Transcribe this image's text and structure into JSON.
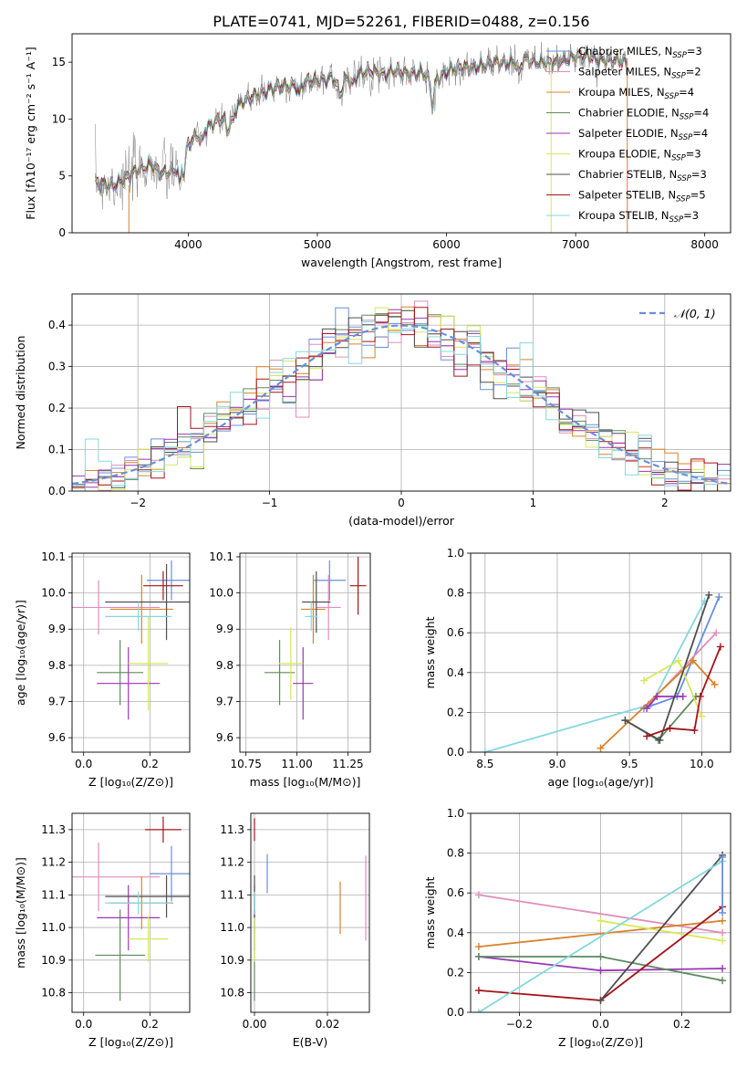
{
  "figure_title": "PLATE=0741, MJD=52261, FIBERID=0488, z=0.156",
  "colors": {
    "chabrier_miles": "#6a8fdc",
    "salpeter_miles": "#e18db9",
    "kroupa_miles": "#d9822b",
    "chabrier_elodie": "#5f8a5f",
    "salpeter_elodie": "#9a35b5",
    "kroupa_elodie": "#d7e85a",
    "chabrier_stelib": "#4f4f4f",
    "salpeter_stelib": "#a3151c",
    "kroupa_stelib": "#84d8de",
    "data_line": "#808080",
    "grid": "#b0b0b0"
  },
  "chart_data": [
    {
      "id": "spectrum",
      "type": "line",
      "xlabel": "wavelength [Angstrom, rest frame]",
      "ylabel": "Flux [fλ10⁻¹⁷ erg cm⁻² s⁻¹ A⁻¹]",
      "xlim": [
        3100,
        8200
      ],
      "ylim": [
        0,
        17.5
      ],
      "xticks": [
        4000,
        5000,
        6000,
        7000,
        8000
      ],
      "yticks": [
        0,
        5,
        10,
        15
      ],
      "grid": false,
      "legend_position": "top-right",
      "legend": [
        {
          "label": "Chabrier MILES, N_SSP=3",
          "color_key": "chabrier_miles"
        },
        {
          "label": "Salpeter MILES, N_SSP=2",
          "color_key": "salpeter_miles"
        },
        {
          "label": "Kroupa MILES, N_SSP=4",
          "color_key": "kroupa_miles"
        },
        {
          "label": "Chabrier ELODIE, N_SSP=4",
          "color_key": "chabrier_elodie"
        },
        {
          "label": "Salpeter ELODIE, N_SSP=4",
          "color_key": "salpeter_elodie"
        },
        {
          "label": "Kroupa ELODIE, N_SSP=3",
          "color_key": "kroupa_elodie"
        },
        {
          "label": "Chabrier STELIB, N_SSP=3",
          "color_key": "chabrier_stelib"
        },
        {
          "label": "Salpeter STELIB, N_SSP=5",
          "color_key": "salpeter_stelib"
        },
        {
          "label": "Kroupa STELIB, N_SSP=3",
          "color_key": "kroupa_stelib"
        }
      ],
      "continuum": {
        "x": [
          3280,
          3400,
          3500,
          3600,
          3700,
          3800,
          3900,
          4000,
          4100,
          4200,
          4300,
          4400,
          4500,
          4600,
          4700,
          4800,
          4900,
          5000,
          5100,
          5200,
          5300,
          5400,
          5500,
          5600,
          5700,
          5800,
          5900,
          6000,
          6100,
          6200,
          6300,
          6400,
          6500,
          6600,
          6700,
          6800,
          6900,
          7000,
          7100,
          7200,
          7300,
          7400
        ],
        "y": [
          4.4,
          4.2,
          4.6,
          5.5,
          6.0,
          5.2,
          5.6,
          7.8,
          9.0,
          9.6,
          10.3,
          11.3,
          12.0,
          12.5,
          12.8,
          13.0,
          13.2,
          13.4,
          13.6,
          13.6,
          13.9,
          14.2,
          14.0,
          14.2,
          14.0,
          14.1,
          13.3,
          14.2,
          14.5,
          14.6,
          14.7,
          15.0,
          14.9,
          15.3,
          15.0,
          14.9,
          15.2,
          15.4,
          15.6,
          15.1,
          15.2,
          15.1
        ]
      }
    },
    {
      "id": "residual_histogram",
      "type": "line",
      "xlabel": "(data-model)/error",
      "ylabel": "Normed distribution",
      "xlim": [
        -2.5,
        2.5
      ],
      "ylim": [
        0,
        0.475
      ],
      "xticks": [
        -2,
        -1,
        0,
        1,
        2
      ],
      "xtick_labels": [
        "−2",
        "−1",
        "0",
        "1",
        "2"
      ],
      "yticks": [
        0.0,
        0.1,
        0.2,
        0.3,
        0.4
      ],
      "grid": true,
      "legend_position": "top-right",
      "legend_label": "𝒩(0, 1)",
      "gaussian": {
        "mean": 0,
        "sigma": 1
      }
    },
    {
      "id": "age_vs_Z",
      "type": "scatter",
      "xlabel": "Z [log₁₀(Z/Z⊙)]",
      "ylabel": "age  [log₁₀(age/yr)]",
      "xlim": [
        -0.035,
        0.32
      ],
      "ylim": [
        9.56,
        10.11
      ],
      "xticks": [
        0.0,
        0.2
      ],
      "yticks": [
        9.6,
        9.7,
        9.8,
        9.9,
        10.0,
        10.1
      ],
      "grid": true,
      "points": [
        {
          "key": "chabrier_miles",
          "x": 0.265,
          "xerr": 0.075,
          "y": 10.035,
          "yerr": 0.055
        },
        {
          "key": "salpeter_miles",
          "x": 0.045,
          "xerr": 0.185,
          "y": 9.96,
          "yerr": 0.075
        },
        {
          "key": "kroupa_miles",
          "x": 0.175,
          "xerr": 0.095,
          "y": 9.955,
          "yerr": 0.095
        },
        {
          "key": "chabrier_elodie",
          "x": 0.11,
          "xerr": 0.07,
          "y": 9.78,
          "yerr": 0.09
        },
        {
          "key": "salpeter_elodie",
          "x": 0.135,
          "xerr": 0.095,
          "y": 9.75,
          "yerr": 0.1
        },
        {
          "key": "kroupa_elodie",
          "x": 0.195,
          "xerr": 0.06,
          "y": 9.805,
          "yerr": 0.13
        },
        {
          "key": "chabrier_stelib",
          "x": 0.25,
          "xerr": 0.185,
          "y": 9.975,
          "yerr": 0.105
        },
        {
          "key": "salpeter_stelib",
          "x": 0.24,
          "xerr": 0.06,
          "y": 10.02,
          "yerr": 0.04
        },
        {
          "key": "kroupa_stelib",
          "x": 0.165,
          "xerr": 0.1,
          "y": 9.935,
          "yerr": 0.04
        }
      ]
    },
    {
      "id": "age_vs_mass",
      "type": "scatter",
      "xlabel": "mass [log₁₀(M/M⊙)]",
      "ylabel": "",
      "xlim": [
        10.72,
        11.36
      ],
      "ylim": [
        9.56,
        10.11
      ],
      "xticks": [
        10.75,
        11.0,
        11.25
      ],
      "yticks": [
        9.6,
        9.7,
        9.8,
        9.9,
        10.0,
        10.1
      ],
      "grid": true,
      "points": [
        {
          "key": "chabrier_miles",
          "x": 11.16,
          "xerr": 0.08,
          "y": 10.035,
          "yerr": 0.055
        },
        {
          "key": "salpeter_miles",
          "x": 11.155,
          "xerr": 0.06,
          "y": 9.96,
          "yerr": 0.09
        },
        {
          "key": "kroupa_miles",
          "x": 11.08,
          "xerr": 0.06,
          "y": 9.955,
          "yerr": 0.095
        },
        {
          "key": "chabrier_elodie",
          "x": 10.915,
          "xerr": 0.075,
          "y": 9.78,
          "yerr": 0.09
        },
        {
          "key": "salpeter_elodie",
          "x": 11.03,
          "xerr": 0.05,
          "y": 9.75,
          "yerr": 0.1
        },
        {
          "key": "kroupa_elodie",
          "x": 10.97,
          "xerr": 0.06,
          "y": 9.805,
          "yerr": 0.1
        },
        {
          "key": "chabrier_stelib",
          "x": 11.095,
          "xerr": 0.07,
          "y": 9.975,
          "yerr": 0.085
        },
        {
          "key": "salpeter_stelib",
          "x": 11.3,
          "xerr": 0.04,
          "y": 10.02,
          "yerr": 0.08
        },
        {
          "key": "kroupa_stelib",
          "x": 11.07,
          "xerr": 0.03,
          "y": 9.935,
          "yerr": 0.04
        }
      ]
    },
    {
      "id": "weight_vs_age",
      "type": "line",
      "xlabel": "age  [log₁₀(age/yr)]",
      "ylabel": "mass weight",
      "xlim": [
        8.4,
        10.2
      ],
      "ylim": [
        0,
        1
      ],
      "xticks": [
        8.5,
        9.0,
        9.5,
        10.0
      ],
      "yticks": [
        0.0,
        0.2,
        0.4,
        0.6,
        0.8,
        1.0
      ],
      "grid": true,
      "series": [
        {
          "key": "kroupa_stelib",
          "x": [
            8.5,
            9.65,
            10.02
          ],
          "y": [
            0.0,
            0.24,
            0.76
          ]
        },
        {
          "key": "chabrier_miles",
          "x": [
            9.6,
            9.83,
            10.12
          ],
          "y": [
            0.22,
            0.28,
            0.78
          ]
        },
        {
          "key": "salpeter_miles",
          "x": [
            9.63,
            10.1
          ],
          "y": [
            0.24,
            0.6
          ]
        },
        {
          "key": "kroupa_miles",
          "x": [
            9.3,
            9.94,
            10.09
          ],
          "y": [
            0.02,
            0.46,
            0.34
          ]
        },
        {
          "key": "chabrier_elodie",
          "x": [
            9.47,
            9.7,
            9.96
          ],
          "y": [
            0.16,
            0.06,
            0.28
          ]
        },
        {
          "key": "salpeter_elodie",
          "x": [
            9.62,
            9.69,
            9.87
          ],
          "y": [
            0.22,
            0.28,
            0.28
          ]
        },
        {
          "key": "kroupa_elodie",
          "x": [
            9.6,
            9.84,
            10.0
          ],
          "y": [
            0.36,
            0.46,
            0.18
          ]
        },
        {
          "key": "chabrier_stelib",
          "x": [
            9.47,
            9.71,
            10.05
          ],
          "y": [
            0.16,
            0.06,
            0.79
          ]
        },
        {
          "key": "salpeter_stelib",
          "x": [
            9.62,
            9.78,
            9.95,
            9.99,
            10.13
          ],
          "y": [
            0.08,
            0.12,
            0.11,
            0.28,
            0.53
          ]
        }
      ]
    },
    {
      "id": "mass_vs_Z",
      "type": "scatter",
      "xlabel": "Z [log₁₀(Z/Z⊙)]",
      "ylabel": "mass [log₁₀(M/M⊙)]",
      "xlim": [
        -0.035,
        0.32
      ],
      "ylim": [
        10.74,
        11.35
      ],
      "xticks": [
        0.0,
        0.2
      ],
      "yticks": [
        10.8,
        10.9,
        11.0,
        11.1,
        11.2,
        11.3
      ],
      "grid": true,
      "points": [
        {
          "key": "chabrier_miles",
          "x": 0.265,
          "xerr": 0.065,
          "y": 11.165,
          "yerr": 0.085
        },
        {
          "key": "salpeter_miles",
          "x": 0.045,
          "xerr": 0.185,
          "y": 11.155,
          "yerr": 0.105
        },
        {
          "key": "kroupa_miles",
          "x": 0.175,
          "xerr": 0.095,
          "y": 11.075,
          "yerr": 0.08
        },
        {
          "key": "chabrier_elodie",
          "x": 0.11,
          "xerr": 0.075,
          "y": 10.915,
          "yerr": 0.14
        },
        {
          "key": "salpeter_elodie",
          "x": 0.135,
          "xerr": 0.095,
          "y": 11.03,
          "yerr": 0.1
        },
        {
          "key": "kroupa_elodie",
          "x": 0.195,
          "xerr": 0.06,
          "y": 10.965,
          "yerr": 0.07
        },
        {
          "key": "chabrier_stelib",
          "x": 0.25,
          "xerr": 0.185,
          "y": 11.095,
          "yerr": 0.065
        },
        {
          "key": "salpeter_stelib",
          "x": 0.24,
          "xerr": 0.055,
          "y": 11.3,
          "yerr": 0.04
        },
        {
          "key": "kroupa_stelib",
          "x": 0.165,
          "xerr": 0.1,
          "y": 11.075,
          "yerr": 0.035
        }
      ]
    },
    {
      "id": "mass_vs_ebv",
      "type": "scatter",
      "xlabel": "E(B-V)",
      "ylabel": "",
      "xlim": [
        -0.001,
        0.0315
      ],
      "ylim": [
        10.74,
        11.35
      ],
      "xticks": [
        0.0,
        0.02
      ],
      "yticks": [
        10.8,
        10.9,
        11.0,
        11.1,
        11.2,
        11.3
      ],
      "grid": true,
      "points": [
        {
          "key": "chabrier_miles",
          "x": 0.0035,
          "y": 11.165,
          "yerr": 0.06
        },
        {
          "key": "salpeter_miles",
          "x": 0.0305,
          "y": 11.09,
          "yerr": 0.13
        },
        {
          "key": "kroupa_miles",
          "x": 0.0235,
          "y": 11.06,
          "yerr": 0.08
        },
        {
          "key": "chabrier_elodie",
          "x": 0.0,
          "y": 10.915,
          "yerr": 0.14
        },
        {
          "key": "salpeter_elodie",
          "x": 0.0,
          "y": 11.03,
          "yerr": 0.1
        },
        {
          "key": "kroupa_elodie",
          "x": 0.0,
          "y": 10.965,
          "yerr": 0.07
        },
        {
          "key": "chabrier_stelib",
          "x": 0.0,
          "y": 11.095,
          "yerr": 0.065
        },
        {
          "key": "salpeter_stelib",
          "x": 0.0,
          "y": 11.3,
          "yerr": 0.035
        },
        {
          "key": "kroupa_stelib",
          "x": 0.0,
          "y": 11.075,
          "yerr": 0.035
        }
      ]
    },
    {
      "id": "weight_vs_Z",
      "type": "line",
      "xlabel": "Z [log₁₀(Z/Z⊙)]",
      "ylabel": "mass weight",
      "xlim": [
        -0.32,
        0.32
      ],
      "ylim": [
        0,
        1
      ],
      "xticks": [
        -0.2,
        0.0,
        0.2
      ],
      "xtick_labels": [
        "−0.2",
        "0.0",
        "0.2"
      ],
      "yticks": [
        0.0,
        0.2,
        0.4,
        0.6,
        0.8,
        1.0
      ],
      "grid": true,
      "series": [
        {
          "key": "salpeter_miles",
          "x": [
            -0.3,
            0.3
          ],
          "y": [
            0.59,
            0.4
          ]
        },
        {
          "key": "kroupa_miles",
          "x": [
            -0.3,
            0.3
          ],
          "y": [
            0.33,
            0.46
          ]
        },
        {
          "key": "salpeter_elodie",
          "x": [
            -0.3,
            0.0,
            0.3
          ],
          "y": [
            0.28,
            0.21,
            0.22
          ]
        },
        {
          "key": "chabrier_elodie",
          "x": [
            -0.3,
            0.0,
            0.3
          ],
          "y": [
            0.28,
            0.28,
            0.16
          ]
        },
        {
          "key": "kroupa_elodie",
          "x": [
            0.0,
            0.3
          ],
          "y": [
            0.46,
            0.36
          ]
        },
        {
          "key": "salpeter_stelib",
          "x": [
            -0.3,
            0.0,
            0.3
          ],
          "y": [
            0.11,
            0.06,
            0.53
          ]
        },
        {
          "key": "chabrier_stelib",
          "x": [
            0.0,
            0.3
          ],
          "y": [
            0.06,
            0.79
          ]
        },
        {
          "key": "kroupa_stelib",
          "x": [
            -0.3,
            0.3
          ],
          "y": [
            0.0,
            0.76
          ]
        },
        {
          "key": "chabrier_miles",
          "x": [
            0.3,
            0.3
          ],
          "y": [
            0.5,
            0.78
          ]
        }
      ]
    }
  ]
}
